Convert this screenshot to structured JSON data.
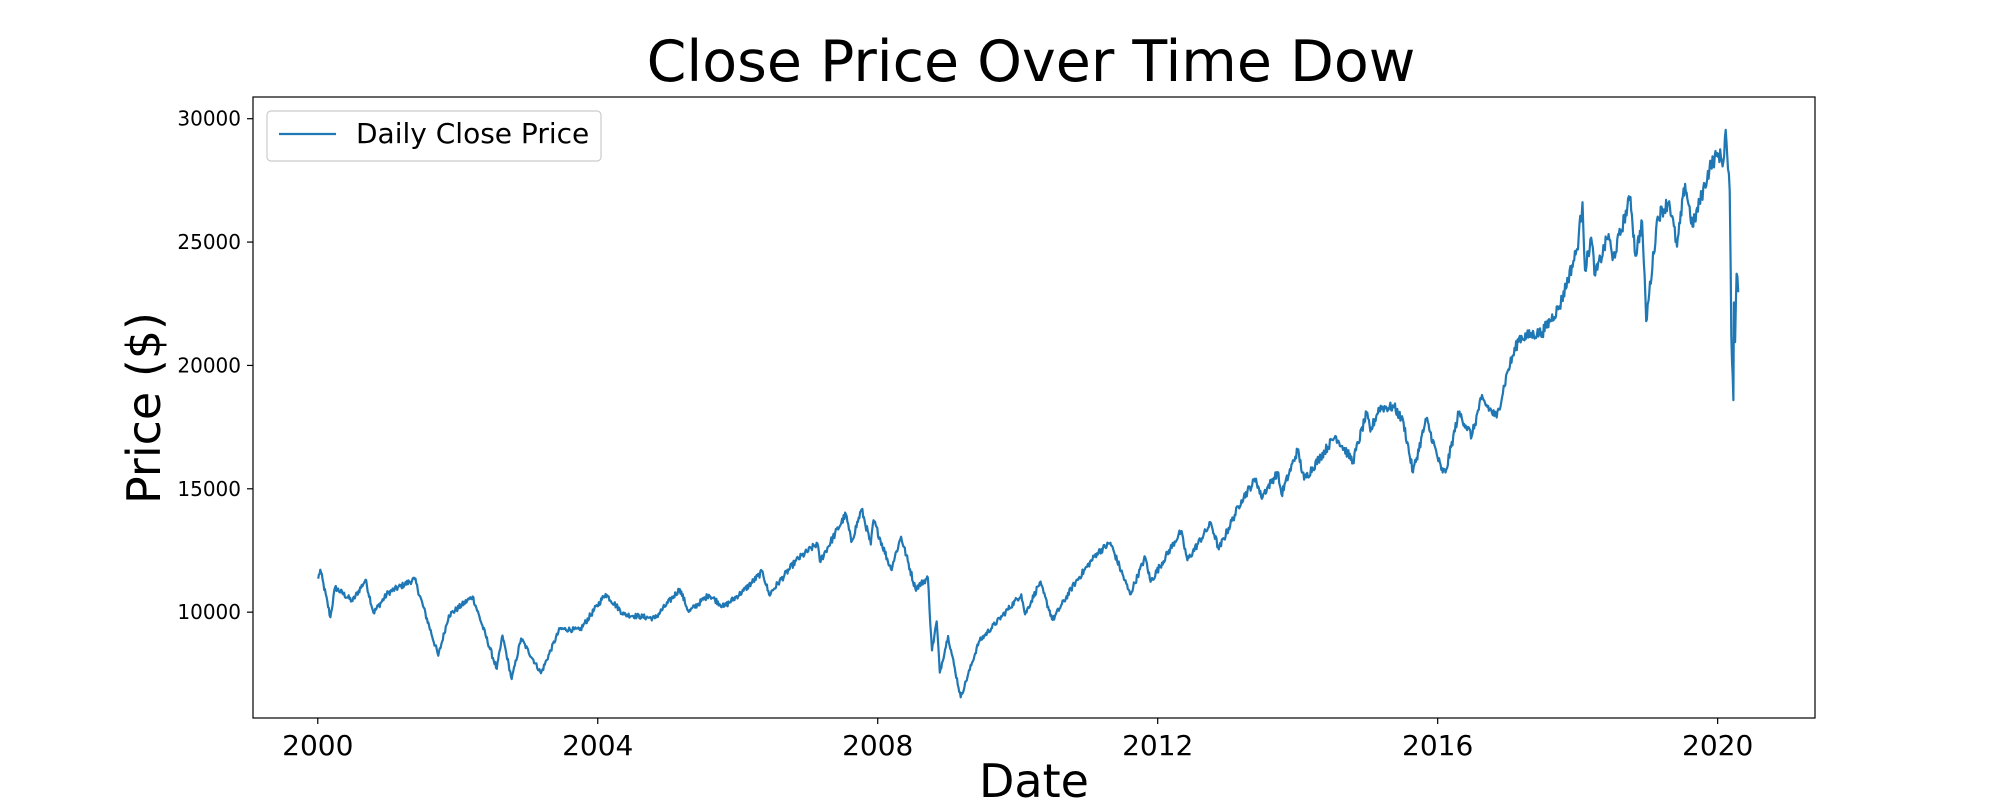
{
  "chart_data": {
    "type": "line",
    "title": "Close Price Over Time Dow",
    "xlabel": "Date",
    "ylabel": "Price ($)",
    "xlim": [
      "1999-01-28",
      "2021-05-23"
    ],
    "ylim": [
      5710,
      30880
    ],
    "x_ticks": [
      "2000",
      "2004",
      "2008",
      "2012",
      "2016",
      "2020"
    ],
    "y_ticks": [
      "10000",
      "15000",
      "20000",
      "25000",
      "30000"
    ],
    "grid": false,
    "legend": {
      "position": "top-left",
      "entries": [
        "Daily Close Price"
      ]
    },
    "series": [
      {
        "name": "Daily Close Price",
        "color": "#1f77b4",
        "x": [
          "2000-01-03",
          "2000-01-14",
          "2000-03-07",
          "2000-03-31",
          "2000-06-30",
          "2000-09-06",
          "2000-10-18",
          "2001-01-02",
          "2001-05-21",
          "2001-09-21",
          "2001-11-15",
          "2002-03-19",
          "2002-07-23",
          "2002-08-22",
          "2002-10-09",
          "2002-11-27",
          "2003-03-11",
          "2003-06-17",
          "2003-09-30",
          "2004-02-11",
          "2004-05-17",
          "2004-10-25",
          "2005-03-04",
          "2005-04-20",
          "2005-08-03",
          "2005-10-20",
          "2006-01-31",
          "2006-05-10",
          "2006-06-13",
          "2006-10-31",
          "2007-02-20",
          "2007-03-05",
          "2007-07-19",
          "2007-08-16",
          "2007-10-09",
          "2007-11-26",
          "2007-12-10",
          "2008-03-10",
          "2008-05-02",
          "2008-07-15",
          "2008-09-19",
          "2008-10-10",
          "2008-11-04",
          "2008-11-20",
          "2009-01-02",
          "2009-03-09",
          "2009-06-12",
          "2009-10-14",
          "2010-01-19",
          "2010-02-08",
          "2010-04-26",
          "2010-07-02",
          "2010-10-22",
          "2011-02-18",
          "2011-04-29",
          "2011-08-10",
          "2011-10-28",
          "2011-11-25",
          "2012-05-01",
          "2012-06-04",
          "2012-10-05",
          "2012-11-15",
          "2013-03-13",
          "2013-05-28",
          "2013-06-24",
          "2013-09-18",
          "2013-10-08",
          "2013-12-31",
          "2014-02-03",
          "2014-07-16",
          "2014-10-16",
          "2014-12-26",
          "2015-01-15",
          "2015-03-02",
          "2015-05-19",
          "2015-07-07",
          "2015-08-25",
          "2015-11-03",
          "2016-01-20",
          "2016-02-11",
          "2016-04-20",
          "2016-06-27",
          "2016-08-15",
          "2016-11-04",
          "2016-12-31",
          "2017-03-01",
          "2017-06-30",
          "2017-09-29",
          "2017-12-29",
          "2018-01-26",
          "2018-02-08",
          "2018-03-12",
          "2018-04-02",
          "2018-06-11",
          "2018-07-02",
          "2018-10-03",
          "2018-10-29",
          "2018-12-03",
          "2018-12-24",
          "2019-02-22",
          "2019-04-23",
          "2019-06-03",
          "2019-07-15",
          "2019-08-23",
          "2019-11-27",
          "2020-01-06",
          "2020-01-31",
          "2020-02-12",
          "2020-02-24",
          "2020-03-04",
          "2020-03-09",
          "2020-03-12",
          "2020-03-16",
          "2020-03-23",
          "2020-03-26",
          "2020-04-01",
          "2020-04-09",
          "2020-04-21"
        ],
        "values": [
          11357,
          11722,
          9796,
          11001,
          10447,
          11310,
          9975,
          10790,
          11337,
          8235,
          9872,
          10635,
          7702,
          9053,
          7286,
          8931,
          7524,
          9323,
          9275,
          10737,
          9906,
          9750,
          10940,
          10012,
          10705,
          10215,
          10865,
          11642,
          10706,
          12081,
          12786,
          12050,
          13972,
          12845,
          14165,
          12744,
          13727,
          11740,
          13058,
          10962,
          11388,
          8451,
          9625,
          7552,
          9034,
          6547,
          8799,
          9871,
          10725,
          9908,
          11205,
          9686,
          11133,
          12391,
          12811,
          10719,
          12231,
          11231,
          13279,
          12101,
          13610,
          12542,
          14539,
          15409,
          14660,
          15676,
          14776,
          16577,
          15373,
          17138,
          16117,
          18053,
          17320,
          18288,
          18312,
          17680,
          15666,
          17828,
          15766,
          15660,
          18096,
          17140,
          18636,
          17888,
          19763,
          21116,
          21349,
          22405,
          24719,
          26617,
          23860,
          25178,
          23644,
          25322,
          24271,
          26828,
          24443,
          25826,
          21792,
          26031,
          26656,
          24815,
          27359,
          25628,
          28164,
          28583,
          28256,
          29551,
          27960,
          27090,
          23851,
          21200,
          20188,
          18592,
          22552,
          20943,
          23719,
          23019
        ]
      }
    ]
  }
}
